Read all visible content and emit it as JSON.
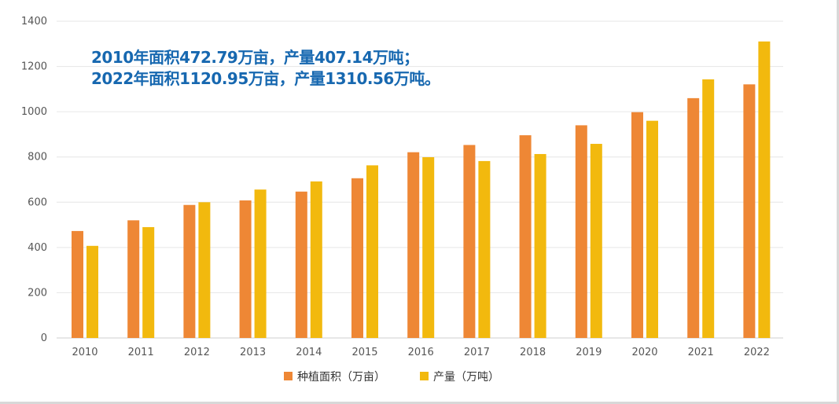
{
  "chart_data": {
    "type": "bar",
    "categories": [
      "2010",
      "2011",
      "2012",
      "2013",
      "2014",
      "2015",
      "2016",
      "2017",
      "2018",
      "2019",
      "2020",
      "2021",
      "2022"
    ],
    "series": [
      {
        "name": "种植面积（万亩）",
        "color": "#ee8735",
        "values": [
          472.79,
          520,
          588,
          608,
          647,
          706,
          821,
          853,
          896,
          940,
          998,
          1060,
          1120.95
        ]
      },
      {
        "name": "产量（万吨）",
        "color": "#f2b90e",
        "values": [
          407.14,
          490,
          600,
          656,
          692,
          763,
          799,
          782,
          813,
          858,
          960,
          1143,
          1310.56
        ]
      }
    ],
    "yticks": [
      "0",
      "200",
      "400",
      "600",
      "800",
      "1000",
      "1200",
      "1400"
    ],
    "ylim": [
      0,
      1400
    ],
    "grid": true,
    "legend_position": "bottom-center",
    "annotations": [
      "2010年面积472.79万亩，产量407.14万吨；",
      "2022年面积1120.95万亩，产量1310.56万吨。"
    ]
  }
}
